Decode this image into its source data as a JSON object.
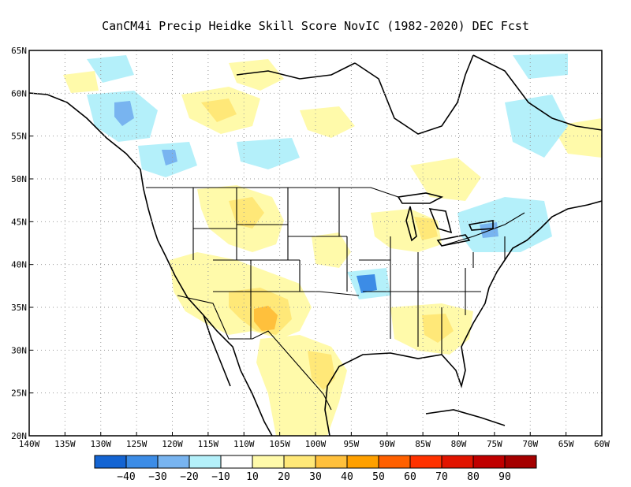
{
  "title": "CanCM4i Precip Heidke Skill Score NovIC (1982-2020) DEC Fcst",
  "map": {
    "lon_labels": [
      "140W",
      "135W",
      "130W",
      "125W",
      "120W",
      "115W",
      "110W",
      "105W",
      "100W",
      "95W",
      "90W",
      "85W",
      "80W",
      "75W",
      "70W",
      "65W",
      "60W"
    ],
    "lat_labels": [
      "20N",
      "25N",
      "30N",
      "35N",
      "40N",
      "45N",
      "50N",
      "55N",
      "60N",
      "65N"
    ],
    "lon_range": [
      -140,
      -60
    ],
    "lat_range": [
      20,
      65
    ],
    "grid": "dotted"
  },
  "colorbar": {
    "labels": [
      "-40",
      "-30",
      "-20",
      "-10",
      "10",
      "20",
      "30",
      "40",
      "50",
      "60",
      "70",
      "80",
      "90"
    ],
    "colors": [
      "#1464d2",
      "#3c8ce6",
      "#78b4f0",
      "#b4f0fa",
      "#ffffff",
      "#fffaaa",
      "#ffe878",
      "#ffc03c",
      "#ffa000",
      "#ff6000",
      "#ff3200",
      "#e11400",
      "#c00000",
      "#a50000"
    ]
  },
  "regions": [
    {
      "name": "arizona-new-mexico",
      "level": "20"
    },
    {
      "name": "new-mexico-core",
      "level": "30"
    },
    {
      "name": "south-texas",
      "level": "20"
    },
    {
      "name": "oklahoma-blue",
      "level": "-20"
    },
    {
      "name": "northeast-blue",
      "level": "-10"
    },
    {
      "name": "bc-blue",
      "level": "-20"
    },
    {
      "name": "southeast-yellow",
      "level": "20"
    }
  ]
}
